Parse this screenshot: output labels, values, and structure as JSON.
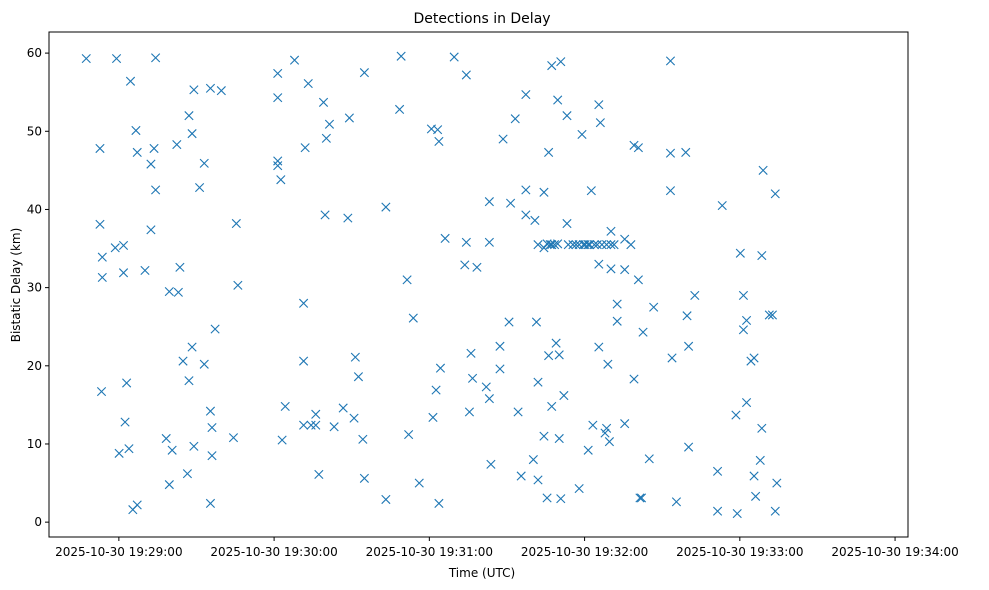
{
  "chart_data": {
    "type": "scatter",
    "title": "Detections in Delay",
    "xlabel": "Time (UTC)",
    "ylabel": "Bistatic Delay (km)",
    "marker": "x",
    "marker_color": "#1f77b4",
    "grid": false,
    "legend": null,
    "xlim": [
      "2025-10-30 19:28:33",
      "2025-10-30 19:34:05"
    ],
    "ylim": [
      -1.9,
      62.7
    ],
    "x_ticks": [
      "2025-10-30 19:29:00",
      "2025-10-30 19:30:00",
      "2025-10-30 19:31:00",
      "2025-10-30 19:32:00",
      "2025-10-30 19:33:00",
      "2025-10-30 19:34:00"
    ],
    "y_ticks": [
      0,
      10,
      20,
      30,
      40,
      50,
      60
    ],
    "points": [
      [
        "2025-10-30 19:28:47.4",
        59.3
      ],
      [
        "2025-10-30 19:28:52.7",
        47.8
      ],
      [
        "2025-10-30 19:28:52.7",
        38.1
      ],
      [
        "2025-10-30 19:28:53.6",
        33.9
      ],
      [
        "2025-10-30 19:28:53.6",
        31.3
      ],
      [
        "2025-10-30 19:28:53.3",
        16.7
      ],
      [
        "2025-10-30 19:28:59.1",
        59.3
      ],
      [
        "2025-10-30 19:28:58.6",
        35.1
      ],
      [
        "2025-10-30 19:29:01.8",
        35.4
      ],
      [
        "2025-10-30 19:29:01.8",
        31.9
      ],
      [
        "2025-10-30 19:29:00.1",
        8.8
      ],
      [
        "2025-10-30 19:29:02.4",
        12.8
      ],
      [
        "2025-10-30 19:29:03.0",
        17.8
      ],
      [
        "2025-10-30 19:29:03.9",
        9.4
      ],
      [
        "2025-10-30 19:29:04.5",
        56.4
      ],
      [
        "2025-10-30 19:29:06.6",
        50.1
      ],
      [
        "2025-10-30 19:29:07.1",
        47.3
      ],
      [
        "2025-10-30 19:29:05.4",
        1.6
      ],
      [
        "2025-10-30 19:29:07.1",
        2.2
      ],
      [
        "2025-10-30 19:29:10.1",
        32.2
      ],
      [
        "2025-10-30 19:29:12.4",
        45.8
      ],
      [
        "2025-10-30 19:29:13.6",
        47.8
      ],
      [
        "2025-10-30 19:29:12.4",
        37.4
      ],
      [
        "2025-10-30 19:29:14.2",
        42.5
      ],
      [
        "2025-10-30 19:29:14.2",
        59.4
      ],
      [
        "2025-10-30 19:29:18.3",
        10.7
      ],
      [
        "2025-10-30 19:29:19.5",
        29.5
      ],
      [
        "2025-10-30 19:29:19.5",
        4.8
      ],
      [
        "2025-10-30 19:29:20.6",
        9.2
      ],
      [
        "2025-10-30 19:29:22.4",
        48.3
      ],
      [
        "2025-10-30 19:29:23.0",
        29.4
      ],
      [
        "2025-10-30 19:29:23.6",
        32.6
      ],
      [
        "2025-10-30 19:29:24.8",
        20.6
      ],
      [
        "2025-10-30 19:29:26.5",
        6.2
      ],
      [
        "2025-10-30 19:29:27.1",
        18.1
      ],
      [
        "2025-10-30 19:29:27.1",
        52.0
      ],
      [
        "2025-10-30 19:29:28.3",
        22.4
      ],
      [
        "2025-10-30 19:29:28.3",
        49.7
      ],
      [
        "2025-10-30 19:29:29.0",
        55.3
      ],
      [
        "2025-10-30 19:29:29.0",
        9.7
      ],
      [
        "2025-10-30 19:29:31.2",
        42.8
      ],
      [
        "2025-10-30 19:29:33.0",
        45.9
      ],
      [
        "2025-10-30 19:29:33.0",
        20.2
      ],
      [
        "2025-10-30 19:29:35.4",
        14.2
      ],
      [
        "2025-10-30 19:29:36.0",
        12.1
      ],
      [
        "2025-10-30 19:29:36.0",
        8.5
      ],
      [
        "2025-10-30 19:29:35.4",
        2.4
      ],
      [
        "2025-10-30 19:29:35.4",
        55.5
      ],
      [
        "2025-10-30 19:29:37.2",
        24.7
      ],
      [
        "2025-10-30 19:29:39.6",
        55.2
      ],
      [
        "2025-10-30 19:29:44.3",
        10.8
      ],
      [
        "2025-10-30 19:29:45.4",
        38.2
      ],
      [
        "2025-10-30 19:29:46.0",
        30.3
      ],
      [
        "2025-10-30 19:30:01.4",
        57.4
      ],
      [
        "2025-10-30 19:30:01.4",
        54.3
      ],
      [
        "2025-10-30 19:30:01.4",
        46.2
      ],
      [
        "2025-10-30 19:30:01.4",
        45.6
      ],
      [
        "2025-10-30 19:30:02.6",
        43.8
      ],
      [
        "2025-10-30 19:30:03.1",
        10.5
      ],
      [
        "2025-10-30 19:30:04.3",
        14.8
      ],
      [
        "2025-10-30 19:30:07.9",
        59.1
      ],
      [
        "2025-10-30 19:30:11.4",
        28.0
      ],
      [
        "2025-10-30 19:30:11.4",
        20.6
      ],
      [
        "2025-10-30 19:30:11.4",
        12.4
      ],
      [
        "2025-10-30 19:30:12.0",
        47.9
      ],
      [
        "2025-10-30 19:30:13.2",
        56.1
      ],
      [
        "2025-10-30 19:30:14.3",
        12.4
      ],
      [
        "2025-10-30 19:30:16.1",
        12.4
      ],
      [
        "2025-10-30 19:30:16.1",
        13.8
      ],
      [
        "2025-10-30 19:30:17.3",
        6.1
      ],
      [
        "2025-10-30 19:30:19.1",
        53.7
      ],
      [
        "2025-10-30 19:30:19.7",
        39.3
      ],
      [
        "2025-10-30 19:30:20.2",
        49.1
      ],
      [
        "2025-10-30 19:30:21.4",
        50.9
      ],
      [
        "2025-10-30 19:30:23.2",
        12.2
      ],
      [
        "2025-10-30 19:30:26.7",
        14.6
      ],
      [
        "2025-10-30 19:30:28.5",
        38.9
      ],
      [
        "2025-10-30 19:30:29.1",
        51.7
      ],
      [
        "2025-10-30 19:30:31.4",
        21.1
      ],
      [
        "2025-10-30 19:30:30.9",
        13.3
      ],
      [
        "2025-10-30 19:30:32.6",
        18.6
      ],
      [
        "2025-10-30 19:30:34.3",
        10.6
      ],
      [
        "2025-10-30 19:30:34.9",
        5.6
      ],
      [
        "2025-10-30 19:30:34.9",
        57.5
      ],
      [
        "2025-10-30 19:30:43.2",
        40.3
      ],
      [
        "2025-10-30 19:30:43.2",
        2.9
      ],
      [
        "2025-10-30 19:30:48.5",
        52.8
      ],
      [
        "2025-10-30 19:30:49.1",
        59.6
      ],
      [
        "2025-10-30 19:30:51.4",
        31.0
      ],
      [
        "2025-10-30 19:30:52.0",
        11.2
      ],
      [
        "2025-10-30 19:30:53.8",
        26.1
      ],
      [
        "2025-10-30 19:30:56.1",
        5.0
      ],
      [
        "2025-10-30 19:31:00.8",
        50.3
      ],
      [
        "2025-10-30 19:31:01.4",
        13.4
      ],
      [
        "2025-10-30 19:31:02.6",
        16.9
      ],
      [
        "2025-10-30 19:31:03.2",
        50.2
      ],
      [
        "2025-10-30 19:31:03.7",
        48.7
      ],
      [
        "2025-10-30 19:31:04.3",
        19.7
      ],
      [
        "2025-10-30 19:31:03.7",
        2.4
      ],
      [
        "2025-10-30 19:31:06.1",
        36.3
      ],
      [
        "2025-10-30 19:31:09.6",
        59.5
      ],
      [
        "2025-10-30 19:31:14.3",
        57.2
      ],
      [
        "2025-10-30 19:31:14.3",
        35.8
      ],
      [
        "2025-10-30 19:31:13.7",
        32.9
      ],
      [
        "2025-10-30 19:31:15.5",
        14.1
      ],
      [
        "2025-10-30 19:31:16.1",
        21.6
      ],
      [
        "2025-10-30 19:31:16.7",
        18.4
      ],
      [
        "2025-10-30 19:31:18.4",
        32.6
      ],
      [
        "2025-10-30 19:31:22.0",
        17.3
      ],
      [
        "2025-10-30 19:31:23.2",
        15.8
      ],
      [
        "2025-10-30 19:31:23.2",
        41.0
      ],
      [
        "2025-10-30 19:31:23.2",
        35.8
      ],
      [
        "2025-10-30 19:31:23.8",
        7.4
      ],
      [
        "2025-10-30 19:31:27.3",
        22.5
      ],
      [
        "2025-10-30 19:31:27.3",
        19.6
      ],
      [
        "2025-10-30 19:31:28.5",
        49.0
      ],
      [
        "2025-10-30 19:31:30.8",
        25.6
      ],
      [
        "2025-10-30 19:31:31.4",
        40.8
      ],
      [
        "2025-10-30 19:31:33.2",
        51.6
      ],
      [
        "2025-10-30 19:31:34.3",
        14.1
      ],
      [
        "2025-10-30 19:31:35.5",
        5.9
      ],
      [
        "2025-10-30 19:31:37.3",
        54.7
      ],
      [
        "2025-10-30 19:31:37.3",
        42.5
      ],
      [
        "2025-10-30 19:31:37.3",
        39.3
      ],
      [
        "2025-10-30 19:31:40.2",
        8.0
      ],
      [
        "2025-10-30 19:31:40.8",
        38.6
      ],
      [
        "2025-10-30 19:31:41.4",
        25.6
      ],
      [
        "2025-10-30 19:31:42.0",
        17.9
      ],
      [
        "2025-10-30 19:31:42.0",
        5.4
      ],
      [
        "2025-10-30 19:31:42.0",
        35.5
      ],
      [
        "2025-10-30 19:31:44.3",
        42.2
      ],
      [
        "2025-10-30 19:31:44.3",
        35.1
      ],
      [
        "2025-10-30 19:31:44.3",
        11.0
      ],
      [
        "2025-10-30 19:31:45.5",
        35.6
      ],
      [
        "2025-10-30 19:31:45.5",
        3.1
      ],
      [
        "2025-10-30 19:31:46.1",
        47.3
      ],
      [
        "2025-10-30 19:31:46.1",
        21.3
      ],
      [
        "2025-10-30 19:31:46.7",
        35.5
      ],
      [
        "2025-10-30 19:31:47.3",
        58.4
      ],
      [
        "2025-10-30 19:31:47.3",
        35.5
      ],
      [
        "2025-10-30 19:31:47.3",
        14.8
      ],
      [
        "2025-10-30 19:31:48.4",
        35.5
      ],
      [
        "2025-10-30 19:31:49.0",
        22.9
      ],
      [
        "2025-10-30 19:31:49.6",
        35.6
      ],
      [
        "2025-10-30 19:31:49.6",
        54.0
      ],
      [
        "2025-10-30 19:31:50.2",
        21.4
      ],
      [
        "2025-10-30 19:31:50.2",
        10.7
      ],
      [
        "2025-10-30 19:31:50.8",
        58.9
      ],
      [
        "2025-10-30 19:31:50.8",
        3.0
      ],
      [
        "2025-10-30 19:31:52.0",
        16.2
      ],
      [
        "2025-10-30 19:31:53.2",
        38.2
      ],
      [
        "2025-10-30 19:31:53.2",
        52.0
      ],
      [
        "2025-10-30 19:31:53.7",
        35.5
      ],
      [
        "2025-10-30 19:31:55.5",
        35.5
      ],
      [
        "2025-10-30 19:31:56.7",
        35.5
      ],
      [
        "2025-10-30 19:31:57.9",
        35.5
      ],
      [
        "2025-10-30 19:31:57.9",
        4.3
      ],
      [
        "2025-10-30 19:31:59.0",
        49.6
      ],
      [
        "2025-10-30 19:31:59.6",
        35.5
      ],
      [
        "2025-10-30 19:32:00.2",
        35.5
      ],
      [
        "2025-10-30 19:32:01.4",
        35.5
      ],
      [
        "2025-10-30 19:32:01.4",
        9.2
      ],
      [
        "2025-10-30 19:32:02.0",
        35.5
      ],
      [
        "2025-10-30 19:32:02.6",
        42.4
      ],
      [
        "2025-10-30 19:32:03.2",
        12.4
      ],
      [
        "2025-10-30 19:32:03.8",
        35.5
      ],
      [
        "2025-10-30 19:32:04.9",
        35.5
      ],
      [
        "2025-10-30 19:32:05.5",
        53.4
      ],
      [
        "2025-10-30 19:32:05.5",
        33.0
      ],
      [
        "2025-10-30 19:32:05.5",
        22.4
      ],
      [
        "2025-10-30 19:32:06.1",
        51.1
      ],
      [
        "2025-10-30 19:32:06.7",
        35.5
      ],
      [
        "2025-10-30 19:32:07.9",
        11.4
      ],
      [
        "2025-10-30 19:32:08.5",
        35.5
      ],
      [
        "2025-10-30 19:32:08.5",
        12.0
      ],
      [
        "2025-10-30 19:32:09.0",
        20.2
      ],
      [
        "2025-10-30 19:32:09.6",
        10.3
      ],
      [
        "2025-10-30 19:32:10.2",
        35.5
      ],
      [
        "2025-10-30 19:32:10.2",
        37.2
      ],
      [
        "2025-10-30 19:32:10.2",
        32.4
      ],
      [
        "2025-10-30 19:32:11.4",
        35.5
      ],
      [
        "2025-10-30 19:32:12.6",
        27.9
      ],
      [
        "2025-10-30 19:32:12.6",
        25.7
      ],
      [
        "2025-10-30 19:32:15.5",
        36.2
      ],
      [
        "2025-10-30 19:32:15.5",
        32.3
      ],
      [
        "2025-10-30 19:32:15.5",
        12.6
      ],
      [
        "2025-10-30 19:32:17.9",
        35.5
      ],
      [
        "2025-10-30 19:32:19.1",
        48.2
      ],
      [
        "2025-10-30 19:32:19.1",
        18.3
      ],
      [
        "2025-10-30 19:32:20.8",
        47.9
      ],
      [
        "2025-10-30 19:32:20.8",
        31.0
      ],
      [
        "2025-10-30 19:32:21.4",
        3.1
      ],
      [
        "2025-10-30 19:32:22.0",
        3.1
      ],
      [
        "2025-10-30 19:32:22.6",
        24.3
      ],
      [
        "2025-10-30 19:32:25.0",
        8.1
      ],
      [
        "2025-10-30 19:32:26.7",
        27.5
      ],
      [
        "2025-10-30 19:32:33.2",
        47.2
      ],
      [
        "2025-10-30 19:32:33.2",
        42.4
      ],
      [
        "2025-10-30 19:32:33.2",
        59.0
      ],
      [
        "2025-10-30 19:32:33.8",
        21.0
      ],
      [
        "2025-10-30 19:32:35.5",
        2.6
      ],
      [
        "2025-10-30 19:32:39.1",
        47.3
      ],
      [
        "2025-10-30 19:32:39.6",
        26.4
      ],
      [
        "2025-10-30 19:32:40.2",
        22.5
      ],
      [
        "2025-10-30 19:32:40.2",
        9.6
      ],
      [
        "2025-10-30 19:32:42.6",
        29.0
      ],
      [
        "2025-10-30 19:32:51.4",
        6.5
      ],
      [
        "2025-10-30 19:32:51.4",
        1.4
      ],
      [
        "2025-10-30 19:32:53.2",
        40.5
      ],
      [
        "2025-10-30 19:32:58.5",
        13.7
      ],
      [
        "2025-10-30 19:32:59.0",
        1.1
      ],
      [
        "2025-10-30 19:33:00.2",
        34.4
      ],
      [
        "2025-10-30 19:33:01.4",
        29.0
      ],
      [
        "2025-10-30 19:33:01.4",
        24.6
      ],
      [
        "2025-10-30 19:33:02.6",
        25.8
      ],
      [
        "2025-10-30 19:33:02.6",
        15.3
      ],
      [
        "2025-10-30 19:33:04.3",
        20.6
      ],
      [
        "2025-10-30 19:33:05.5",
        21.0
      ],
      [
        "2025-10-30 19:33:05.5",
        5.9
      ],
      [
        "2025-10-30 19:33:06.1",
        3.3
      ],
      [
        "2025-10-30 19:33:07.9",
        7.9
      ],
      [
        "2025-10-30 19:33:08.5",
        34.1
      ],
      [
        "2025-10-30 19:33:08.5",
        12.0
      ],
      [
        "2025-10-30 19:33:09.0",
        45.0
      ],
      [
        "2025-10-30 19:33:11.4",
        26.5
      ],
      [
        "2025-10-30 19:33:12.6",
        26.5
      ],
      [
        "2025-10-30 19:33:13.7",
        42.0
      ],
      [
        "2025-10-30 19:33:14.3",
        5.0
      ],
      [
        "2025-10-30 19:33:13.7",
        1.4
      ]
    ]
  }
}
